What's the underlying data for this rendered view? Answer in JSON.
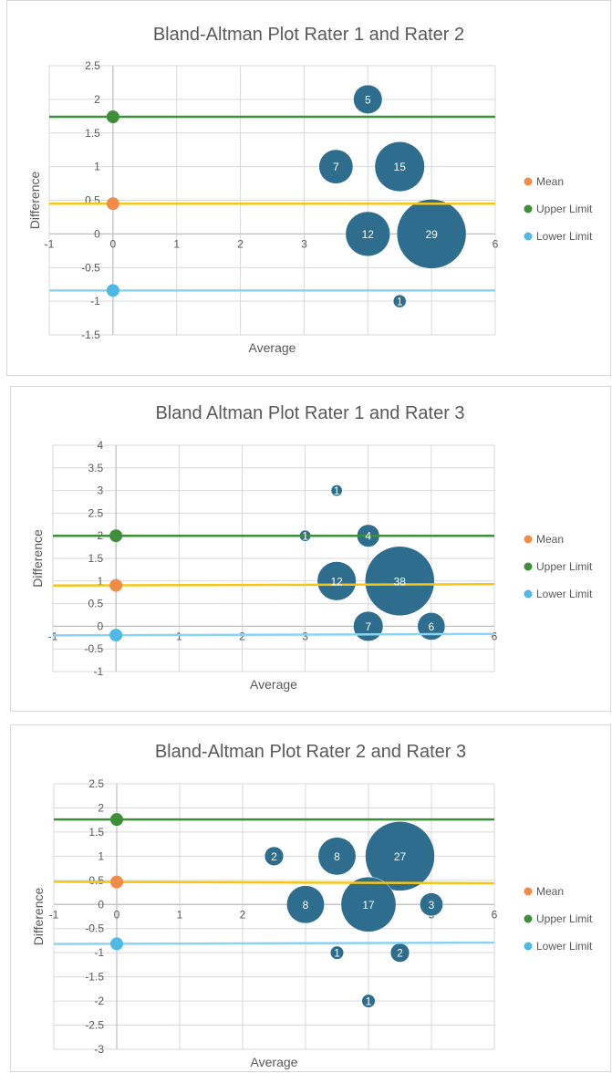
{
  "chart_data": [
    {
      "type": "scatter",
      "title": "Bland-Altman Plot Rater 1 and Rater 2",
      "xlabel": "Average",
      "ylabel": "Difference",
      "xlim": [
        -1,
        6
      ],
      "ylim": [
        -1.5,
        2.5
      ],
      "x_ticks": [
        -1,
        0,
        1,
        2,
        3,
        4,
        5,
        6
      ],
      "y_ticks": [
        -1.5,
        -1,
        -0.5,
        0,
        0.5,
        1,
        1.5,
        2,
        2.5
      ],
      "legend_position": "right",
      "series": [
        {
          "name": "Mean",
          "color": "#F08C4A",
          "x": [
            -1,
            6
          ],
          "y": [
            0.45,
            0.45
          ],
          "line_color": "#F5C518"
        },
        {
          "name": "Upper Limit",
          "color": "#3E8E3A",
          "x": [
            -1,
            6
          ],
          "y": [
            1.74,
            1.74
          ],
          "line_color": "#3E8E3A"
        },
        {
          "name": "Lower Limit",
          "color": "#4FB8E5",
          "x": [
            -1,
            6
          ],
          "y": [
            -0.84,
            -0.84
          ],
          "line_color": "#8CD3F2"
        }
      ],
      "bubbles": [
        {
          "x": 4,
          "y": 2,
          "size": 5
        },
        {
          "x": 3.5,
          "y": 1,
          "size": 7
        },
        {
          "x": 4.5,
          "y": 1,
          "size": 15
        },
        {
          "x": 4,
          "y": 0,
          "size": 12
        },
        {
          "x": 5,
          "y": 0,
          "size": 29
        },
        {
          "x": 4.5,
          "y": -1,
          "size": 1
        }
      ],
      "bubble_color": "#2E6D8E"
    },
    {
      "type": "scatter",
      "title": "Bland Altman Plot Rater 1 and Rater 3",
      "xlabel": "Average",
      "ylabel": "Difference",
      "xlim": [
        -1,
        6
      ],
      "ylim": [
        -1,
        4
      ],
      "x_ticks": [
        -1,
        0,
        1,
        2,
        3,
        4,
        5,
        6
      ],
      "y_ticks": [
        -1,
        -0.5,
        0,
        0.5,
        1,
        1.5,
        2,
        2.5,
        3,
        3.5,
        4
      ],
      "legend_position": "right",
      "series": [
        {
          "name": "Mean",
          "color": "#F08C4A",
          "x": [
            -1,
            6
          ],
          "y": [
            0.9,
            0.93
          ],
          "line_color": "#F5C518"
        },
        {
          "name": "Upper Limit",
          "color": "#3E8E3A",
          "x": [
            -1,
            6
          ],
          "y": [
            2.0,
            2.0
          ],
          "line_color": "#3E8E3A"
        },
        {
          "name": "Lower Limit",
          "color": "#4FB8E5",
          "x": [
            -1,
            6
          ],
          "y": [
            -0.2,
            -0.17
          ],
          "line_color": "#8CD3F2"
        }
      ],
      "bubbles": [
        {
          "x": 3.5,
          "y": 3,
          "size": 1
        },
        {
          "x": 3,
          "y": 2,
          "size": 1
        },
        {
          "x": 4,
          "y": 2,
          "size": 4
        },
        {
          "x": 3.5,
          "y": 1,
          "size": 12
        },
        {
          "x": 4.5,
          "y": 1,
          "size": 38
        },
        {
          "x": 4,
          "y": 0,
          "size": 7
        },
        {
          "x": 5,
          "y": 0,
          "size": 6
        }
      ],
      "bubble_color": "#2E6D8E"
    },
    {
      "type": "scatter",
      "title": "Bland-Altman Plot Rater 2 and Rater 3",
      "xlabel": "Average",
      "ylabel": "Difference",
      "xlim": [
        -1,
        6
      ],
      "ylim": [
        -3,
        2.5
      ],
      "x_ticks": [
        -1,
        0,
        1,
        2,
        3,
        4,
        5,
        6
      ],
      "y_ticks": [
        -3,
        -2.5,
        -2,
        -1.5,
        -1,
        -0.5,
        0,
        0.5,
        1,
        1.5,
        2,
        2.5
      ],
      "legend_position": "right",
      "series": [
        {
          "name": "Mean",
          "color": "#F08C4A",
          "x": [
            -1,
            6
          ],
          "y": [
            0.47,
            0.44
          ],
          "line_color": "#F5C518"
        },
        {
          "name": "Upper Limit",
          "color": "#3E8E3A",
          "x": [
            -1,
            6
          ],
          "y": [
            1.76,
            1.76
          ],
          "line_color": "#3E8E3A"
        },
        {
          "name": "Lower Limit",
          "color": "#4FB8E5",
          "x": [
            -1,
            6
          ],
          "y": [
            -0.82,
            -0.79
          ],
          "line_color": "#8CD3F2"
        }
      ],
      "bubbles": [
        {
          "x": 2.5,
          "y": 1,
          "size": 2
        },
        {
          "x": 3.5,
          "y": 1,
          "size": 8
        },
        {
          "x": 4.5,
          "y": 1,
          "size": 27
        },
        {
          "x": 3,
          "y": 0,
          "size": 8
        },
        {
          "x": 4,
          "y": 0,
          "size": 17
        },
        {
          "x": 5,
          "y": 0,
          "size": 3
        },
        {
          "x": 3.5,
          "y": -1,
          "size": 1
        },
        {
          "x": 4.5,
          "y": -1,
          "size": 2
        },
        {
          "x": 4,
          "y": -2,
          "size": 1
        }
      ],
      "bubble_color": "#2E6D8E"
    }
  ]
}
